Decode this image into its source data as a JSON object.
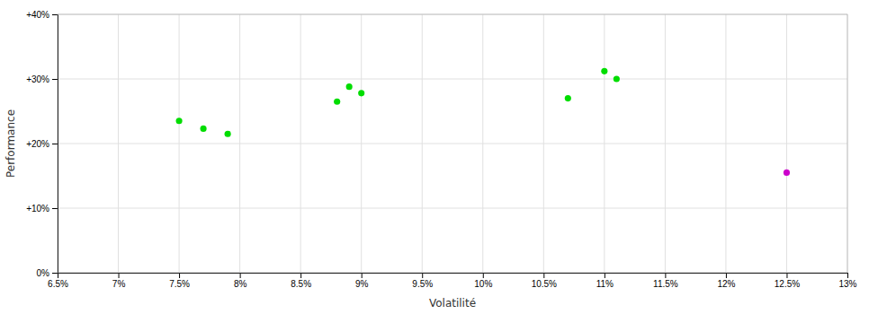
{
  "chart_data": {
    "type": "scatter",
    "xlabel": "Volatilité",
    "ylabel": "Performance",
    "xlim": [
      0.065,
      0.13
    ],
    "ylim": [
      0.0,
      0.4
    ],
    "xticks": [
      {
        "value": 0.065,
        "label": "6.5%"
      },
      {
        "value": 0.07,
        "label": "7%"
      },
      {
        "value": 0.075,
        "label": "7.5%"
      },
      {
        "value": 0.08,
        "label": "8%"
      },
      {
        "value": 0.085,
        "label": "8.5%"
      },
      {
        "value": 0.09,
        "label": "9%"
      },
      {
        "value": 0.095,
        "label": "9.5%"
      },
      {
        "value": 0.1,
        "label": "10%"
      },
      {
        "value": 0.105,
        "label": "10.5%"
      },
      {
        "value": 0.11,
        "label": "11%"
      },
      {
        "value": 0.115,
        "label": "11.5%"
      },
      {
        "value": 0.12,
        "label": "12%"
      },
      {
        "value": 0.125,
        "label": "12.5%"
      },
      {
        "value": 0.13,
        "label": "13%"
      }
    ],
    "yticks": [
      {
        "value": 0.0,
        "label": "0%"
      },
      {
        "value": 0.1,
        "label": "+10%"
      },
      {
        "value": 0.2,
        "label": "+20%"
      },
      {
        "value": 0.3,
        "label": "+30%"
      },
      {
        "value": 0.4,
        "label": "+40%"
      }
    ],
    "grid": true,
    "marker": "circle",
    "series": [
      {
        "color": "#00dd00",
        "x": [
          0.075,
          0.077,
          0.079,
          0.088,
          0.089,
          0.09,
          0.107,
          0.11,
          0.111
        ],
        "values": [
          0.235,
          0.223,
          0.215,
          0.265,
          0.288,
          0.278,
          0.27,
          0.312,
          0.3
        ]
      },
      {
        "color": "#cc00cc",
        "x": [
          0.125
        ],
        "values": [
          0.155
        ]
      }
    ]
  }
}
